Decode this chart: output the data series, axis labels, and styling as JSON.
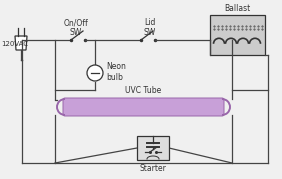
{
  "bg_color": "#f0f0f0",
  "line_color": "#333333",
  "components": {
    "plug_label": "120VAC",
    "sw1_label": "On/Off\nSW",
    "sw2_label": "Lid\nSW",
    "ballast_label": "Ballast",
    "neon_label": "Neon\nbulb",
    "tube_label": "UVC Tube",
    "starter_label": "Starter"
  },
  "tube_fill": "#c8a0d8",
  "tube_edge": "#9966aa",
  "ballast_fill": "#cccccc",
  "starter_fill": "#dddddd",
  "wire_color": "#444444",
  "font_size": 5.5
}
